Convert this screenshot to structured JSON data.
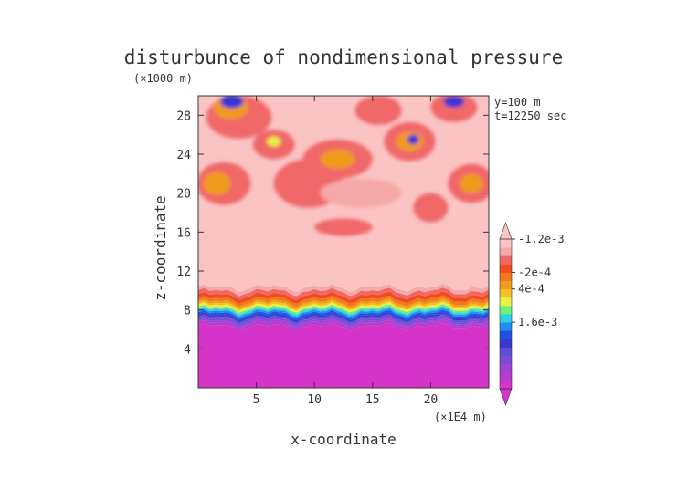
{
  "chart_data": {
    "type": "heatmap",
    "title": "disturbunce of nondimensional pressure",
    "xlabel": "x-coordinate",
    "ylabel": "z-coordinate",
    "x_unit": "(×1E4 m)",
    "y_unit": "(×1000 m)",
    "annotations": [
      "y=100 m",
      "t=12250 sec"
    ],
    "xlim": [
      0,
      25
    ],
    "ylim": [
      0,
      30
    ],
    "x_ticks": [
      5,
      10,
      15,
      20
    ],
    "y_ticks": [
      4,
      8,
      12,
      16,
      20,
      24,
      28
    ],
    "colorbar_labels": [
      "1.6e-3",
      "4e-4",
      "-2e-4",
      "-1.2e-3"
    ],
    "colorbar_label_levels": [
      8,
      12,
      14,
      18
    ],
    "palette": [
      "#d633c8",
      "#b83ccf",
      "#9e44d4",
      "#7d4ad8",
      "#5c4fd8",
      "#3838d0",
      "#2050e0",
      "#1f8ef0",
      "#2fd0e8",
      "#6ef07a",
      "#eaf04a",
      "#f5c023",
      "#f09a1e",
      "#f07a1a",
      "#f04c1e",
      "#f06868",
      "#f5a8a8",
      "#fbc4c4"
    ],
    "bands": [
      {
        "from": 0,
        "to": 6.3,
        "level": 0
      },
      {
        "from": 6.3,
        "to": 6.6,
        "level": 1
      },
      {
        "from": 6.6,
        "to": 6.8,
        "level": 2
      },
      {
        "from": 6.8,
        "to": 7.0,
        "level": 3
      },
      {
        "from": 7.0,
        "to": 7.2,
        "level": 4
      },
      {
        "from": 7.2,
        "to": 7.4,
        "level": 5
      },
      {
        "from": 7.4,
        "to": 7.6,
        "level": 6
      },
      {
        "from": 7.6,
        "to": 7.8,
        "level": 7
      },
      {
        "from": 7.8,
        "to": 8.0,
        "level": 8
      },
      {
        "from": 8.0,
        "to": 8.2,
        "level": 9
      },
      {
        "from": 8.2,
        "to": 8.4,
        "level": 10
      },
      {
        "from": 8.4,
        "to": 8.6,
        "level": 11
      },
      {
        "from": 8.6,
        "to": 8.8,
        "level": 12
      },
      {
        "from": 8.8,
        "to": 9.1,
        "level": 13
      },
      {
        "from": 9.1,
        "to": 9.5,
        "level": 14
      },
      {
        "from": 9.5,
        "to": 9.9,
        "level": 15
      },
      {
        "from": 9.9,
        "to": 10.3,
        "level": 16
      },
      {
        "from": 10.3,
        "to": 30,
        "level": 17
      }
    ],
    "blobs": [
      {
        "x": 3.5,
        "z": 27.8,
        "rx": 2.8,
        "rz": 2.2,
        "level": 15
      },
      {
        "x": 2.8,
        "z": 28.8,
        "rx": 1.5,
        "rz": 1.2,
        "level": 12
      },
      {
        "x": 2.9,
        "z": 29.4,
        "rx": 1.0,
        "rz": 0.7,
        "level": 5
      },
      {
        "x": 2.2,
        "z": 21.0,
        "rx": 2.3,
        "rz": 2.2,
        "level": 15
      },
      {
        "x": 1.6,
        "z": 21.0,
        "rx": 1.2,
        "rz": 1.2,
        "level": 12
      },
      {
        "x": 6.5,
        "z": 25.0,
        "rx": 1.8,
        "rz": 1.5,
        "level": 15
      },
      {
        "x": 6.5,
        "z": 25.3,
        "rx": 0.6,
        "rz": 0.5,
        "level": 10
      },
      {
        "x": 9.5,
        "z": 21.0,
        "rx": 3.0,
        "rz": 2.5,
        "level": 15
      },
      {
        "x": 12.0,
        "z": 23.5,
        "rx": 3.0,
        "rz": 2.0,
        "level": 15
      },
      {
        "x": 12.0,
        "z": 23.5,
        "rx": 1.5,
        "rz": 1.0,
        "level": 12
      },
      {
        "x": 12.5,
        "z": 16.5,
        "rx": 2.5,
        "rz": 0.9,
        "level": 15
      },
      {
        "x": 18.2,
        "z": 25.3,
        "rx": 2.2,
        "rz": 2.0,
        "level": 15
      },
      {
        "x": 18.2,
        "z": 25.3,
        "rx": 1.2,
        "rz": 1.0,
        "level": 12
      },
      {
        "x": 18.5,
        "z": 25.5,
        "rx": 0.5,
        "rz": 0.5,
        "level": 5
      },
      {
        "x": 15.5,
        "z": 28.5,
        "rx": 2.0,
        "rz": 1.5,
        "level": 15
      },
      {
        "x": 22.0,
        "z": 28.8,
        "rx": 2.0,
        "rz": 1.5,
        "level": 15
      },
      {
        "x": 22.0,
        "z": 29.4,
        "rx": 0.9,
        "rz": 0.6,
        "level": 5
      },
      {
        "x": 23.5,
        "z": 21.0,
        "rx": 2.0,
        "rz": 2.0,
        "level": 15
      },
      {
        "x": 23.5,
        "z": 21.0,
        "rx": 1.0,
        "rz": 1.0,
        "level": 12
      },
      {
        "x": 20.0,
        "z": 18.5,
        "rx": 1.5,
        "rz": 1.5,
        "level": 15
      },
      {
        "x": 14.0,
        "z": 20.0,
        "rx": 3.5,
        "rz": 1.5,
        "level": 16
      }
    ]
  }
}
